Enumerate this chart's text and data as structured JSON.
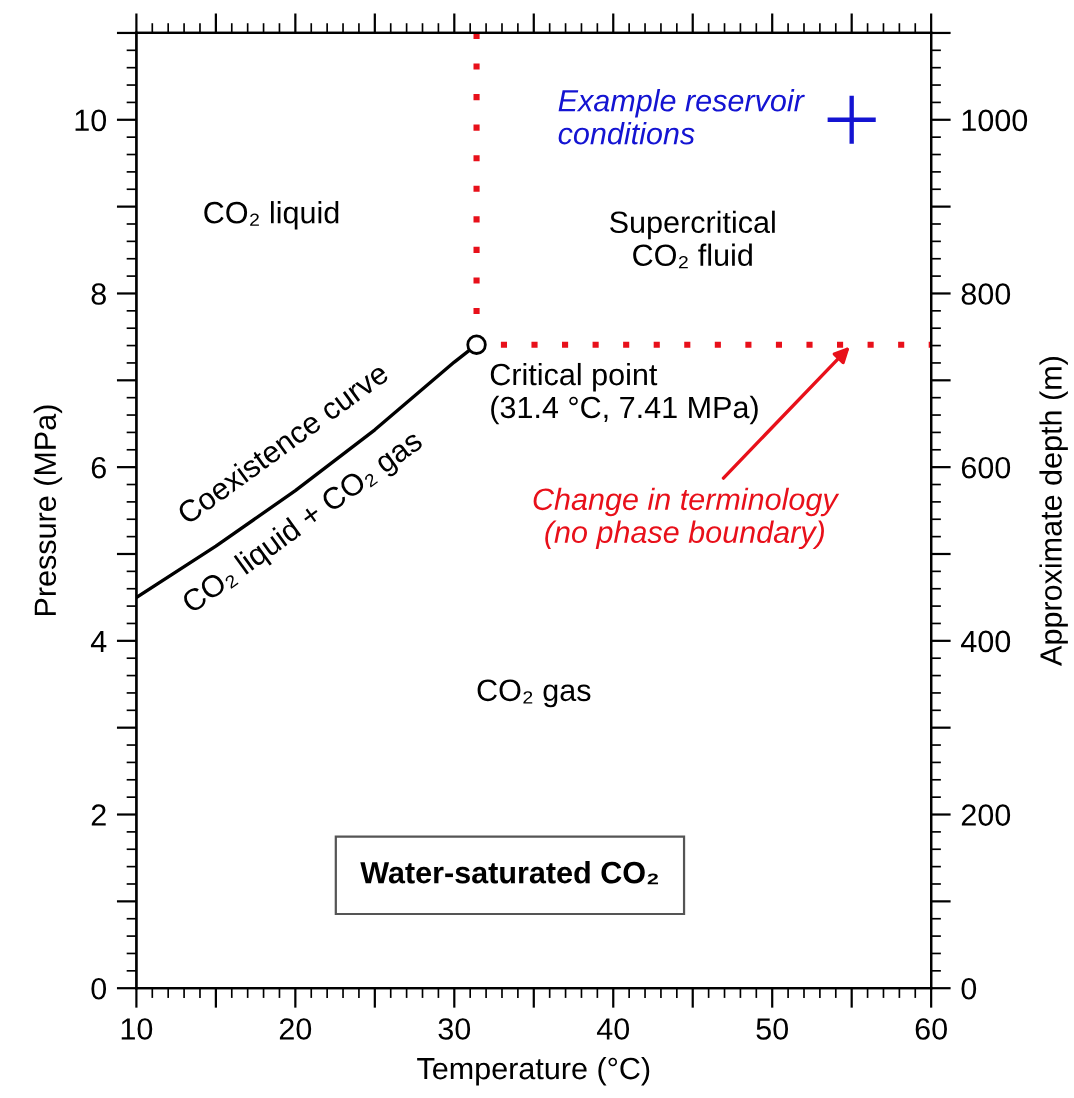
{
  "chart_data": {
    "type": "line",
    "xlabel": "Temperature (°C)",
    "ylabel": "Pressure (MPa)",
    "y2label": "Approximate depth (m)",
    "xlim": [
      10,
      60
    ],
    "ylim": [
      0,
      11
    ],
    "y2lim": [
      0,
      1100
    ],
    "xticks": [
      10,
      {
        "value": 15,
        "label": null
      },
      20,
      {
        "value": 25,
        "label": null
      },
      30,
      {
        "value": 35,
        "label": null
      },
      40,
      {
        "value": 45,
        "label": null
      },
      50,
      {
        "value": 55,
        "label": null
      },
      60
    ],
    "yticks": [
      0,
      {
        "value": 1,
        "label": null
      },
      2,
      {
        "value": 3,
        "label": null
      },
      4,
      {
        "value": 5,
        "label": null
      },
      6,
      {
        "value": 7,
        "label": null
      },
      8,
      {
        "value": 9,
        "label": null
      },
      10,
      {
        "value": 11,
        "label": null
      }
    ],
    "y2ticks": [
      0,
      {
        "value": 100,
        "label": null
      },
      200,
      {
        "value": 300,
        "label": null
      },
      400,
      {
        "value": 500,
        "label": null
      },
      600,
      {
        "value": 700,
        "label": null
      },
      800,
      {
        "value": 900,
        "label": null
      },
      1000,
      {
        "value": 1100,
        "label": null
      }
    ],
    "grid": false,
    "series": [
      {
        "color": "#000000",
        "line_style": "solid",
        "marker": "none",
        "x": [
          10,
          15,
          20,
          25,
          30,
          31.4
        ],
        "values": [
          4.5,
          5.09,
          5.73,
          6.43,
          7.21,
          7.41
        ]
      },
      {
        "color": "#e8101a",
        "line_style": "dotted",
        "marker": "none",
        "x": [
          31.4,
          31.4,
          60
        ],
        "values": [
          11,
          7.41,
          7.41
        ]
      },
      {
        "type": "scatter",
        "color": "#000000",
        "marker": "circle",
        "x": [
          31.4
        ],
        "values": [
          7.41
        ]
      },
      {
        "type": "scatter",
        "color": "#1414d2",
        "marker": "cross",
        "x": [
          55
        ],
        "values": [
          10
        ]
      }
    ],
    "annotations": [
      "Example reservoir\nconditions",
      "Critical point\n(31.4 °C, 7.41 MPa)",
      {
        "text": "Change in terminology\n(no phase boundary)",
        "x": 55,
        "y": 7.41
      },
      "CO₂ liquid",
      "Supercritical\nCO₂ fluid",
      "CO₂ gas",
      "Coexistence curve",
      "CO₂ liquid + CO₂ gas",
      "Water-saturated CO₂"
    ]
  }
}
